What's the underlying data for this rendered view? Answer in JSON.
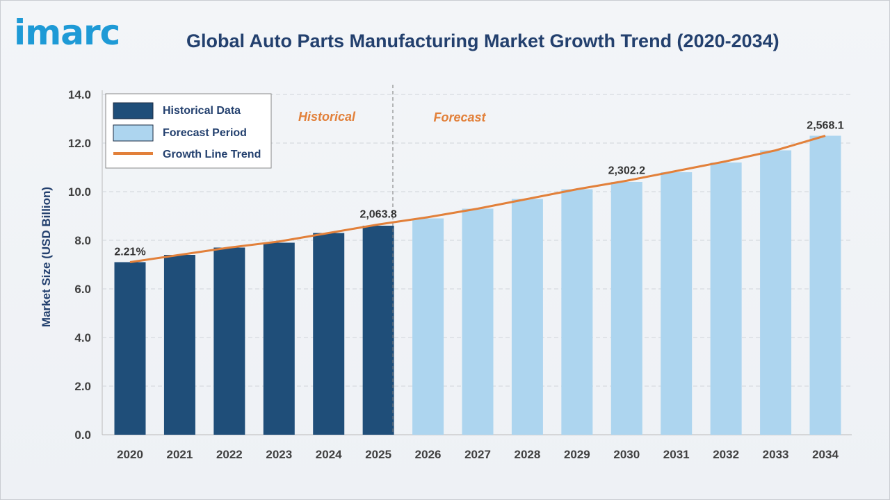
{
  "logo": "imarc",
  "title": "Global Auto Parts Manufacturing Market Growth Trend (2020-2034)",
  "colors": {
    "historical": "#1f4e79",
    "forecast": "#add5ef",
    "trend": "#e2803a",
    "title": "#23406e",
    "logo": "#1e9ad6"
  },
  "chart_data": {
    "type": "bar",
    "title": "Global Auto Parts Manufacturing Market Growth Trend (2020-2034)",
    "ylabel": "Market Size (USD Billion)",
    "xlabel": "",
    "ylim": [
      0,
      14
    ],
    "yticks": [
      "0.0",
      "2.0",
      "4.0",
      "6.0",
      "8.0",
      "10.0",
      "12.0",
      "14.0"
    ],
    "grid": true,
    "legend_position": "top-left",
    "categories": [
      "2020",
      "2021",
      "2022",
      "2023",
      "2024",
      "2025",
      "2026",
      "2027",
      "2028",
      "2029",
      "2030",
      "2031",
      "2032",
      "2033",
      "2034"
    ],
    "series": [
      {
        "name": "Historical Data",
        "values": [
          7.1,
          7.4,
          7.7,
          7.9,
          8.3,
          8.6,
          null,
          null,
          null,
          null,
          null,
          null,
          null,
          null,
          null
        ]
      },
      {
        "name": "Forecast Period",
        "values": [
          null,
          null,
          null,
          null,
          null,
          null,
          8.9,
          9.3,
          9.7,
          10.1,
          10.4,
          10.8,
          11.2,
          11.7,
          12.3
        ]
      },
      {
        "name": "Growth Line Trend",
        "type": "line",
        "values": [
          7.1,
          7.4,
          7.7,
          7.95,
          8.3,
          8.65,
          8.95,
          9.3,
          9.7,
          10.1,
          10.45,
          10.85,
          11.25,
          11.7,
          12.3
        ]
      }
    ],
    "data_labels": [
      {
        "category": "2020",
        "text": "2.21%"
      },
      {
        "category": "2025",
        "text": "2,063.8"
      },
      {
        "category": "2030",
        "text": "2,302.2"
      },
      {
        "category": "2034",
        "text": "2,568.1"
      }
    ],
    "annotations": {
      "historical": "Historical",
      "forecast": "Forecast"
    }
  }
}
